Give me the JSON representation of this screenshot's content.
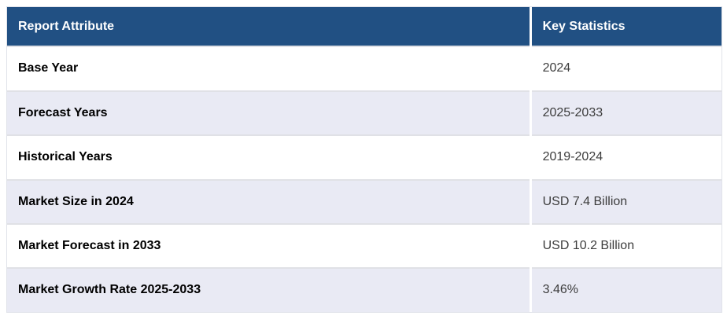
{
  "chart_data": {
    "type": "table",
    "columns": [
      "Report Attribute",
      "Key Statistics"
    ],
    "rows": [
      [
        "Base Year",
        "2024"
      ],
      [
        "Forecast Years",
        "2025-2033"
      ],
      [
        "Historical Years",
        "2019-2024"
      ],
      [
        "Market Size in 2024",
        "USD 7.4 Billion"
      ],
      [
        "Market Forecast in 2033",
        "USD 10.2 Billion"
      ],
      [
        "Market Growth Rate 2025-2033",
        "3.46%"
      ]
    ],
    "legend_position": "none",
    "grid": "row-separators"
  },
  "colors": {
    "header_bg": "#215083",
    "header_text": "#ffffff",
    "row_bg": "#ffffff",
    "row_alt_bg": "#e9eaf4",
    "label_text": "#000000",
    "value_text": "#3c3c3c",
    "row_border": "#e0e1e6",
    "column_divider": "#ffffff"
  }
}
